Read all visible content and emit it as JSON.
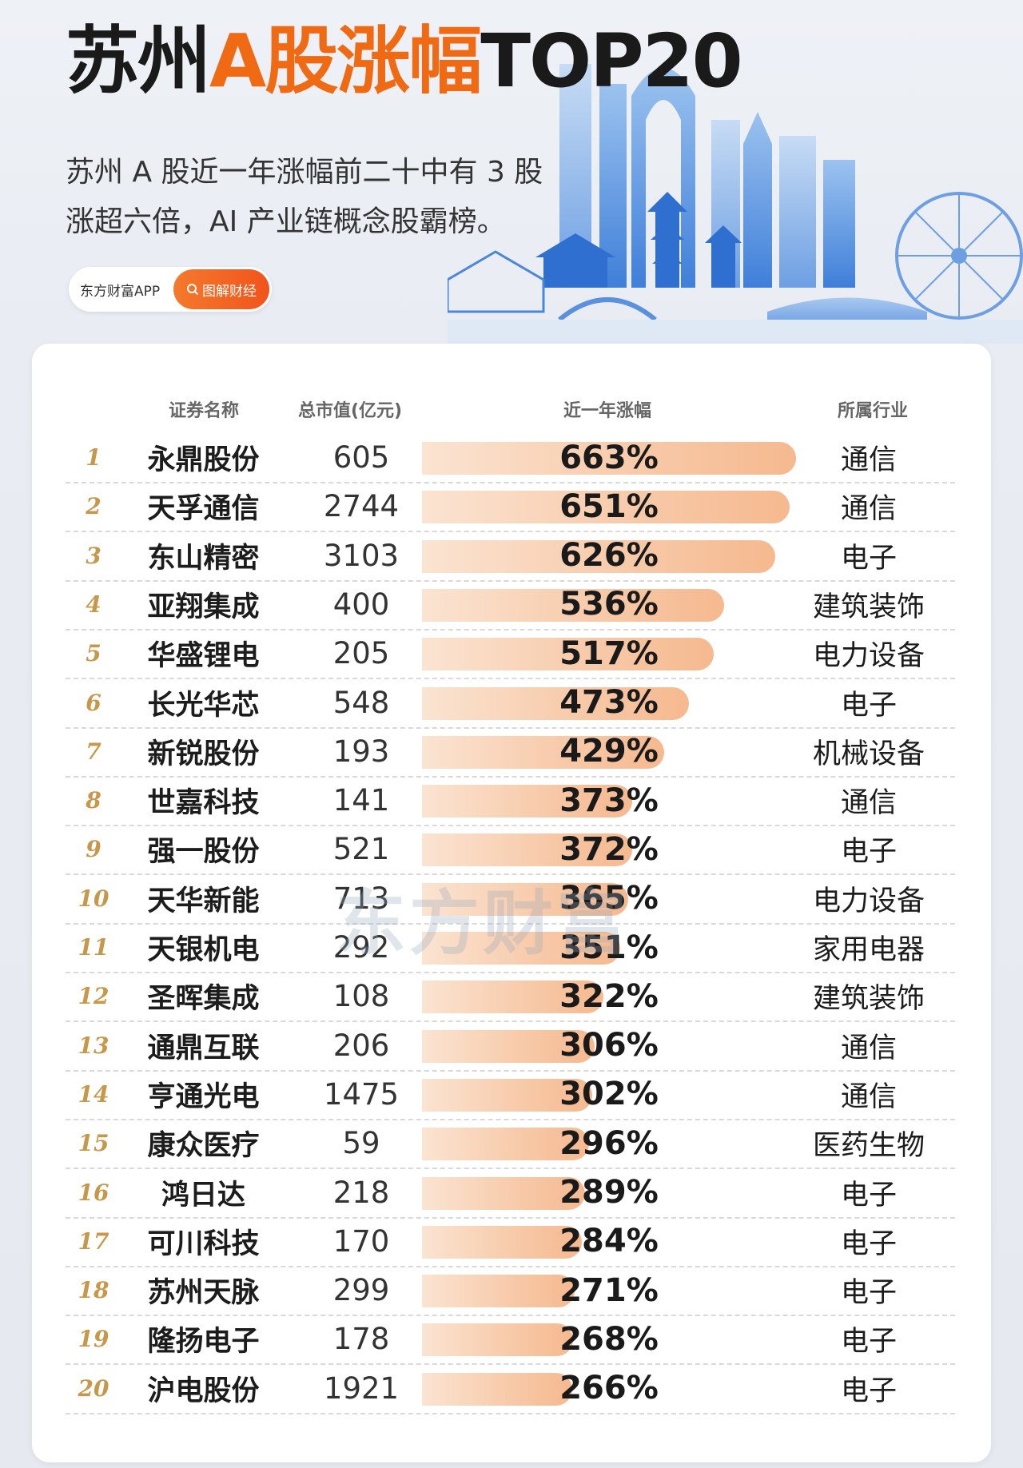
{
  "header": {
    "title_part1": "苏州",
    "title_part2": "A股涨幅",
    "title_part3": "TOP20",
    "subtitle_line1": "苏州 A 股近一年涨幅前二十中有 3 股",
    "subtitle_line2": "涨超六倍，AI 产业链概念股霸榜。",
    "brand_name": "东方财富APP",
    "brand_tag": "图解财经",
    "accent_color": "#f06a14"
  },
  "columns": {
    "name": "证券名称",
    "market_cap": "总市值(亿元)",
    "gain": "近一年涨幅",
    "industry": "所属行业"
  },
  "watermark": "东方财富",
  "chart_data": {
    "type": "bar",
    "orientation": "horizontal",
    "bar_color": "#f6b98f",
    "rows": [
      {
        "rank": "1",
        "name": "永鼎股份",
        "market_cap": "605",
        "gain": 663,
        "gain_label": "663%",
        "industry": "通信"
      },
      {
        "rank": "2",
        "name": "天孚通信",
        "market_cap": "2744",
        "gain": 651,
        "gain_label": "651%",
        "industry": "通信"
      },
      {
        "rank": "3",
        "name": "东山精密",
        "market_cap": "3103",
        "gain": 626,
        "gain_label": "626%",
        "industry": "电子"
      },
      {
        "rank": "4",
        "name": "亚翔集成",
        "market_cap": "400",
        "gain": 536,
        "gain_label": "536%",
        "industry": "建筑装饰"
      },
      {
        "rank": "5",
        "name": "华盛锂电",
        "market_cap": "205",
        "gain": 517,
        "gain_label": "517%",
        "industry": "电力设备"
      },
      {
        "rank": "6",
        "name": "长光华芯",
        "market_cap": "548",
        "gain": 473,
        "gain_label": "473%",
        "industry": "电子"
      },
      {
        "rank": "7",
        "name": "新锐股份",
        "market_cap": "193",
        "gain": 429,
        "gain_label": "429%",
        "industry": "机械设备"
      },
      {
        "rank": "8",
        "name": "世嘉科技",
        "market_cap": "141",
        "gain": 373,
        "gain_label": "373%",
        "industry": "通信"
      },
      {
        "rank": "9",
        "name": "强一股份",
        "market_cap": "521",
        "gain": 372,
        "gain_label": "372%",
        "industry": "电子"
      },
      {
        "rank": "10",
        "name": "天华新能",
        "market_cap": "713",
        "gain": 365,
        "gain_label": "365%",
        "industry": "电力设备"
      },
      {
        "rank": "11",
        "name": "天银机电",
        "market_cap": "292",
        "gain": 351,
        "gain_label": "351%",
        "industry": "家用电器"
      },
      {
        "rank": "12",
        "name": "圣晖集成",
        "market_cap": "108",
        "gain": 322,
        "gain_label": "322%",
        "industry": "建筑装饰"
      },
      {
        "rank": "13",
        "name": "通鼎互联",
        "market_cap": "206",
        "gain": 306,
        "gain_label": "306%",
        "industry": "通信"
      },
      {
        "rank": "14",
        "name": "亨通光电",
        "market_cap": "1475",
        "gain": 302,
        "gain_label": "302%",
        "industry": "通信"
      },
      {
        "rank": "15",
        "name": "康众医疗",
        "market_cap": "59",
        "gain": 296,
        "gain_label": "296%",
        "industry": "医药生物"
      },
      {
        "rank": "16",
        "name": "鸿日达",
        "market_cap": "218",
        "gain": 289,
        "gain_label": "289%",
        "industry": "电子"
      },
      {
        "rank": "17",
        "name": "可川科技",
        "market_cap": "170",
        "gain": 284,
        "gain_label": "284%",
        "industry": "电子"
      },
      {
        "rank": "18",
        "name": "苏州天脉",
        "market_cap": "299",
        "gain": 271,
        "gain_label": "271%",
        "industry": "电子"
      },
      {
        "rank": "19",
        "name": "隆扬电子",
        "market_cap": "178",
        "gain": 268,
        "gain_label": "268%",
        "industry": "电子"
      },
      {
        "rank": "20",
        "name": "沪电股份",
        "market_cap": "1921",
        "gain": 266,
        "gain_label": "266%",
        "industry": "电子"
      }
    ]
  }
}
